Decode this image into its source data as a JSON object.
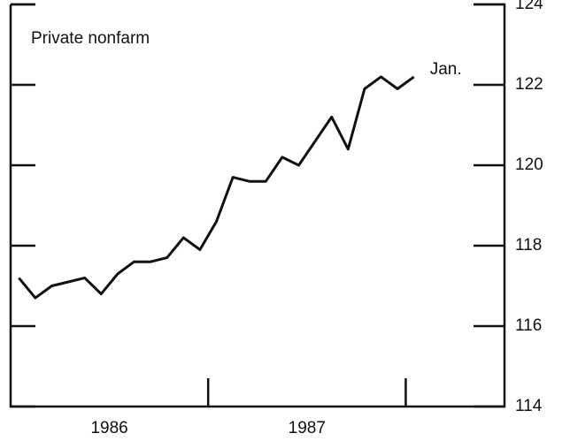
{
  "chart_data": {
    "type": "line",
    "series": [
      {
        "name": "Private nonfarm",
        "color": "#111111",
        "values": [
          117.2,
          116.7,
          117.0,
          117.1,
          117.2,
          116.8,
          117.3,
          117.6,
          117.6,
          117.7,
          118.2,
          117.9,
          118.6,
          119.7,
          119.6,
          119.6,
          120.2,
          120.0,
          120.6,
          121.2,
          120.4,
          121.9,
          122.2,
          121.9,
          122.2
        ]
      }
    ],
    "categories": [
      null,
      null,
      null,
      null,
      null,
      null,
      null,
      null,
      null,
      null,
      null,
      null,
      null,
      null,
      null,
      null,
      null,
      null,
      null,
      null,
      null,
      null,
      null,
      null,
      null
    ],
    "year_labels": [
      "1986",
      "1987"
    ],
    "end_label": "Jan.",
    "ylim": [
      114,
      124
    ],
    "yticks": [
      114,
      116,
      118,
      120,
      122,
      124
    ]
  }
}
